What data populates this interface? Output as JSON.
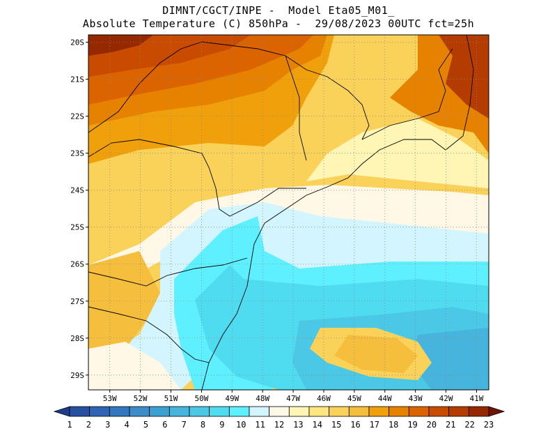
{
  "header": {
    "line1": "DIMNT/CGCT/INPE -  Model Eta05_M01_",
    "line2": "Absolute Temperature (C) 850hPa -  29/08/2023 00UTC fct=25h"
  },
  "map": {
    "lat_range": [
      -29.4,
      -19.8
    ],
    "lon_range": [
      -53.7,
      -40.6
    ],
    "lat_ticks": [
      "20S",
      "21S",
      "22S",
      "23S",
      "24S",
      "25S",
      "26S",
      "27S",
      "28S",
      "29S"
    ],
    "lon_ticks": [
      "53W",
      "52W",
      "51W",
      "50W",
      "49W",
      "48W",
      "47W",
      "46W",
      "45W",
      "44W",
      "43W",
      "42W",
      "41W"
    ],
    "grid": "dotted"
  },
  "colorbar": {
    "labels": [
      "1",
      "2",
      "3",
      "4",
      "5",
      "6",
      "7",
      "8",
      "9",
      "10",
      "11",
      "12",
      "13",
      "14",
      "15",
      "16",
      "17",
      "18",
      "19",
      "20",
      "21",
      "22",
      "23"
    ],
    "colors": [
      "#1e3c8c",
      "#2850a0",
      "#2d64b4",
      "#3278be",
      "#3c8cc8",
      "#3ca0d2",
      "#46b4dc",
      "#4bc8e6",
      "#50dcf0",
      "#5ff0ff",
      "#d2f5ff",
      "#fff8e6",
      "#fff5b4",
      "#ffe682",
      "#fad25a",
      "#f5be3c",
      "#f0a00a",
      "#e68200",
      "#dc6400",
      "#c84b00",
      "#b43c00",
      "#962800",
      "#6e1400"
    ]
  }
}
